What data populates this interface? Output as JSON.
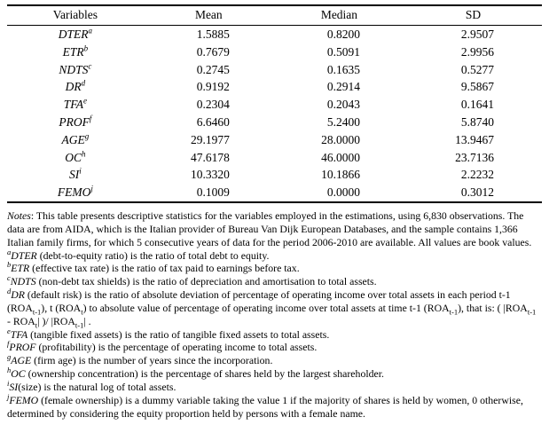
{
  "table": {
    "columns": [
      "Variables",
      "Mean",
      "Median",
      "SD"
    ],
    "rows": [
      {
        "var": "DTER",
        "sup": "a",
        "mean": "1.5885",
        "median": "0.8200",
        "sd": "2.9507"
      },
      {
        "var": "ETR",
        "sup": "b",
        "mean": "0.7679",
        "median": "0.5091",
        "sd": "2.9956"
      },
      {
        "var": "NDTS",
        "sup": "c",
        "mean": "0.2745",
        "median": "0.1635",
        "sd": "0.5277"
      },
      {
        "var": "DR",
        "sup": "d",
        "mean": "0.9192",
        "median": "0.2914",
        "sd": "9.5867"
      },
      {
        "var": "TFA",
        "sup": "e",
        "mean": "0.2304",
        "median": "0.2043",
        "sd": "0.1641"
      },
      {
        "var": "PROF",
        "sup": "f",
        "mean": "6.6460",
        "median": "5.2400",
        "sd": "5.8740"
      },
      {
        "var": "AGE",
        "sup": "g",
        "mean": "29.1977",
        "median": "28.0000",
        "sd": "13.9467"
      },
      {
        "var": "OC",
        "sup": "h",
        "mean": "47.6178",
        "median": "46.0000",
        "sd": "23.7136"
      },
      {
        "var": "SI",
        "sup": "i",
        "mean": "10.3320",
        "median": "10.1866",
        "sd": "2.2232"
      },
      {
        "var": "FEMO",
        "sup": "j",
        "mean": "0.1009",
        "median": "0.0000",
        "sd": "0.3012"
      }
    ]
  },
  "notes": {
    "label": "Notes",
    "text": ": This table presents descriptive statistics for the variables employed in the estimations, using 6,830 observations. The data are from AIDA, which is the Italian provider of Bureau Van Dijk European Databases, and the sample contains 1,366 Italian family firms, for which 5 consecutive years of data for the period 2006-2010 are available. All values are book values.",
    "footnotes": [
      {
        "sup": "a",
        "var": "DTER",
        "text": " (debt-to-equity ratio) is the ratio of total debt to equity."
      },
      {
        "sup": "b",
        "var": "ETR",
        "text": " (effective tax rate) is the ratio of tax paid to earnings before tax."
      },
      {
        "sup": "c",
        "var": "NDTS",
        "text": " (non-debt tax shields) is the ratio of depreciation and amortisation to total assets."
      },
      {
        "sup": "d",
        "var": "DR",
        "text": " (default risk) is the ratio of absolute deviation of percentage of operating income over total assets in each period t-1 (ROA~t-1~), t (ROA~t~) to absolute value of percentage of operating income over total assets at time t-1 (ROA~t-1~), that is: ( |ROA~t-1~ - ROA~t~| )/ |ROA~t-1~| ."
      },
      {
        "sup": "e",
        "var": "TFA",
        "text": " (tangible fixed assets) is the ratio of tangible fixed assets to total assets."
      },
      {
        "sup": "f",
        "var": "PROF",
        "text": " (profitability) is the percentage of operating income to total assets."
      },
      {
        "sup": "g",
        "var": "AGE",
        "text": " (firm age) is the number of years since the incorporation."
      },
      {
        "sup": "h",
        "var": "OC",
        "text": " (ownership concentration) is the percentage of shares held by the largest shareholder."
      },
      {
        "sup": "i",
        "var": "SI",
        "text": "(size) is the natural log of total assets."
      },
      {
        "sup": "j",
        "var": "FEMO",
        "text": " (female ownership) is a dummy variable taking the value 1 if the majority of shares is held by women, 0 otherwise, determined by considering the equity proportion held by persons with a female name."
      }
    ]
  }
}
